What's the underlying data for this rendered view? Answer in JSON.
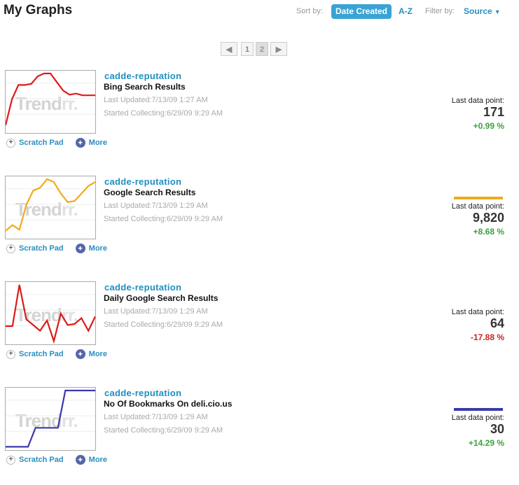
{
  "header": {
    "title": "My Graphs",
    "sort_label": "Sort by:",
    "sort_active": "Date Created",
    "sort_alt": "A-Z",
    "filter_label": "Filter by:",
    "filter_value": "Source",
    "accent_color": "#3aa3d4"
  },
  "pagination": {
    "prev": "◀",
    "pages": [
      "1",
      "2"
    ],
    "next": "▶",
    "current": "2"
  },
  "watermark": {
    "a": "Trend",
    "b": "rr."
  },
  "actions": {
    "scratch": "Scratch Pad",
    "more": "More"
  },
  "graphs": [
    {
      "name": "cadde-reputation",
      "source": "Bing Search Results",
      "updated": "Last Updated:7/13/09 1:27 AM",
      "started": "Started Collecting:6/29/09 9:29 AM",
      "ldp_label": "Last data point:",
      "value": "171",
      "change": "+0.99 %",
      "change_color": "#3aa33a",
      "line_color": "#dd1a1a",
      "bar_color": "",
      "series": [
        10,
        55,
        80,
        80,
        82,
        95,
        100,
        100,
        85,
        70,
        63,
        65,
        62,
        62,
        62
      ]
    },
    {
      "name": "cadde-reputation",
      "source": "Google Search Results",
      "updated": "Last Updated:7/13/09 1:29 AM",
      "started": "Started Collecting:6/29/09 9:29 AM",
      "ldp_label": "Last data point:",
      "value": "9,820",
      "change": "+8.68 %",
      "change_color": "#3aa33a",
      "line_color": "#f0ab1a",
      "bar_color": "#f0ab1a",
      "series": [
        10,
        20,
        12,
        55,
        80,
        85,
        100,
        95,
        75,
        60,
        62,
        75,
        88,
        95
      ]
    },
    {
      "name": "cadde-reputation",
      "source": "Daily Google Search Results",
      "updated": "Last Updated:7/13/09 1:29 AM",
      "started": "Started Collecting:6/29/09 9:29 AM",
      "ldp_label": "Last data point:",
      "value": "64",
      "change": "-17.88 %",
      "change_color": "#cc2222",
      "line_color": "#dd1a1a",
      "bar_color": "",
      "series": [
        28,
        28,
        100,
        40,
        30,
        20,
        38,
        2,
        50,
        30,
        32,
        42,
        20,
        45
      ]
    },
    {
      "name": "cadde-reputation",
      "source": "No Of Bookmarks On deli.cio.us",
      "updated": "Last Updated:7/13/09 1:29 AM",
      "started": "Started Collecting:6/29/09 9:29 AM",
      "ldp_label": "Last data point:",
      "value": "30",
      "change": "+14.29 %",
      "change_color": "#3aa33a",
      "line_color": "#3a3aaa",
      "bar_color": "#3a3aaa",
      "series": [
        2,
        2,
        2,
        2,
        35,
        35,
        35,
        35,
        100,
        100,
        100,
        100,
        100
      ]
    }
  ]
}
